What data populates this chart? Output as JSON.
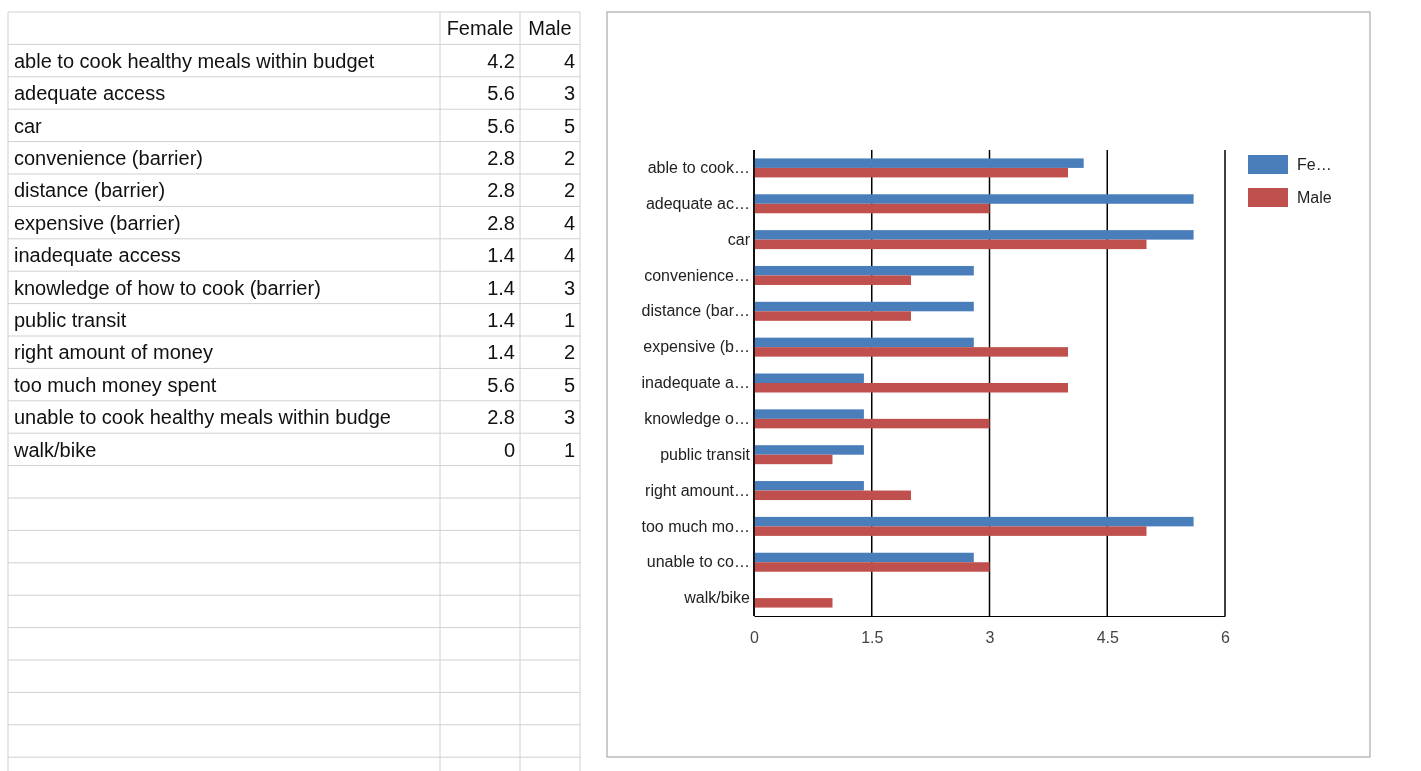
{
  "chart_data": [
    {
      "type": "heatmap",
      "categories": [
        "Female",
        "Male"
      ],
      "y_categories": [
        "able to cook healthy meals within budget",
        "adequate access",
        "car",
        "convenience (barrier)",
        "distance (barrier)",
        "expensive (barrier)",
        "inadequate access",
        "knowledge of how to cook (barrier)",
        "public transit",
        "right amount of money",
        "too much money spent",
        "unable to cook healthy meals within budge",
        "walk/bike"
      ],
      "cells": [
        [
          4.2,
          4
        ],
        [
          5.6,
          3
        ],
        [
          5.6,
          5
        ],
        [
          2.8,
          2
        ],
        [
          2.8,
          2
        ],
        [
          2.8,
          4
        ],
        [
          1.4,
          4
        ],
        [
          1.4,
          3
        ],
        [
          1.4,
          1
        ],
        [
          1.4,
          2
        ],
        [
          5.6,
          5
        ],
        [
          2.8,
          3
        ],
        [
          0,
          1
        ]
      ],
      "data_labels": true
    },
    {
      "type": "bar",
      "orientation": "horizontal",
      "categories": [
        "able to cook…",
        "adequate ac…",
        "car",
        "convenience…",
        "distance (bar…",
        "expensive (b…",
        "inadequate a…",
        "knowledge o…",
        "public transit",
        "right amount…",
        "too much mo…",
        "unable to co…",
        "walk/bike"
      ],
      "series": [
        {
          "name": "Fe…",
          "color": "#4a7ebb",
          "values": [
            4.2,
            5.6,
            5.6,
            2.8,
            2.8,
            2.8,
            1.4,
            1.4,
            1.4,
            1.4,
            5.6,
            2.8,
            0
          ]
        },
        {
          "name": "Male",
          "color": "#c0504d",
          "values": [
            4,
            3,
            5,
            2,
            2,
            4,
            4,
            3,
            1,
            2,
            5,
            3,
            1
          ]
        }
      ],
      "xlim": [
        0,
        6
      ],
      "xticks": [
        0,
        1.5,
        3,
        4.5,
        6
      ],
      "grid": "x",
      "legend": "right"
    }
  ]
}
